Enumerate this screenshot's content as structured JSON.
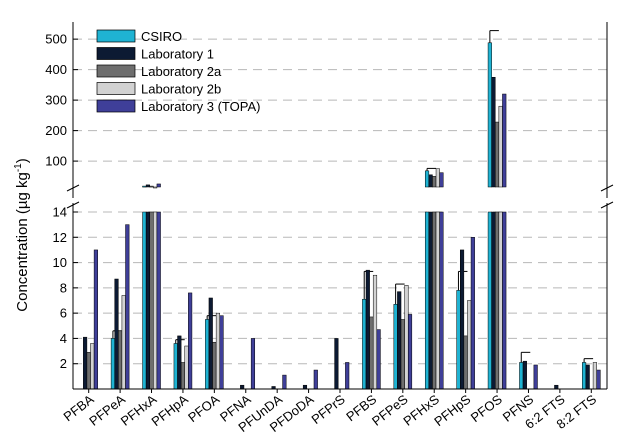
{
  "chart_data": {
    "type": "bar",
    "ylabel": "Concentration (µg kg⁻¹)",
    "ylabel_main": "Concentration (µg kg",
    "ylabel_exp": "-1",
    "ylabel_end": ")",
    "axis_break": true,
    "lower_range": [
      0,
      14
    ],
    "lower_ticks": [
      2,
      4,
      6,
      8,
      10,
      12,
      14
    ],
    "upper_range": [
      15,
      530
    ],
    "upper_ticks": [
      100,
      200,
      300,
      400,
      500
    ],
    "grid": "dashed horizontal lines at upper-axis ticks",
    "legend_position": "top-left",
    "categories": [
      "PFBA",
      "PFPeA",
      "PFHxA",
      "PFHpA",
      "PFOA",
      "PFNA",
      "PFUnDA",
      "PFDoDA",
      "PFPrS",
      "PFBS",
      "PFPeS",
      "PFHxS",
      "PFHpS",
      "PFOS",
      "PFNS",
      "6:2 FTS",
      "8:2 FTS"
    ],
    "series": [
      {
        "name": "CSIRO",
        "color": "#1fb3d3",
        "values": [
          null,
          4.0,
          18,
          3.6,
          5.5,
          null,
          null,
          null,
          null,
          7.1,
          6.7,
          68,
          7.8,
          488,
          2.1,
          null,
          2.1
        ],
        "errors": [
          null,
          0.6,
          null,
          0.3,
          0.3,
          null,
          null,
          null,
          null,
          2.2,
          1.6,
          8,
          1.5,
          40,
          0.8,
          null,
          0.3
        ]
      },
      {
        "name": "Laboratory 1",
        "color": "#0c1a33",
        "values": [
          4.1,
          8.7,
          22,
          4.2,
          7.2,
          0.3,
          0.2,
          0.3,
          4.0,
          9.4,
          7.7,
          55,
          11.0,
          375,
          2.2,
          0.3,
          1.9
        ],
        "errors": []
      },
      {
        "name": "Laboratory 2a",
        "color": "#6e6e6e",
        "values": [
          2.9,
          4.6,
          18,
          2.1,
          3.7,
          null,
          null,
          null,
          null,
          5.7,
          5.5,
          50,
          4.2,
          228,
          null,
          null,
          null
        ],
        "errors": []
      },
      {
        "name": "Laboratory 2b",
        "color": "#d2d2d2",
        "values": [
          3.6,
          7.4,
          15,
          3.4,
          6.0,
          null,
          null,
          null,
          null,
          9.0,
          8.2,
          75,
          7.0,
          280,
          null,
          null,
          2.1
        ],
        "errors": []
      },
      {
        "name": "Laboratory 3 (TOPA)",
        "color": "#3f3f99",
        "values": [
          11.0,
          13.0,
          25,
          7.6,
          5.8,
          4.0,
          1.1,
          1.5,
          2.1,
          4.7,
          5.9,
          62,
          12.0,
          320,
          1.9,
          null,
          1.5
        ],
        "errors": []
      }
    ]
  }
}
